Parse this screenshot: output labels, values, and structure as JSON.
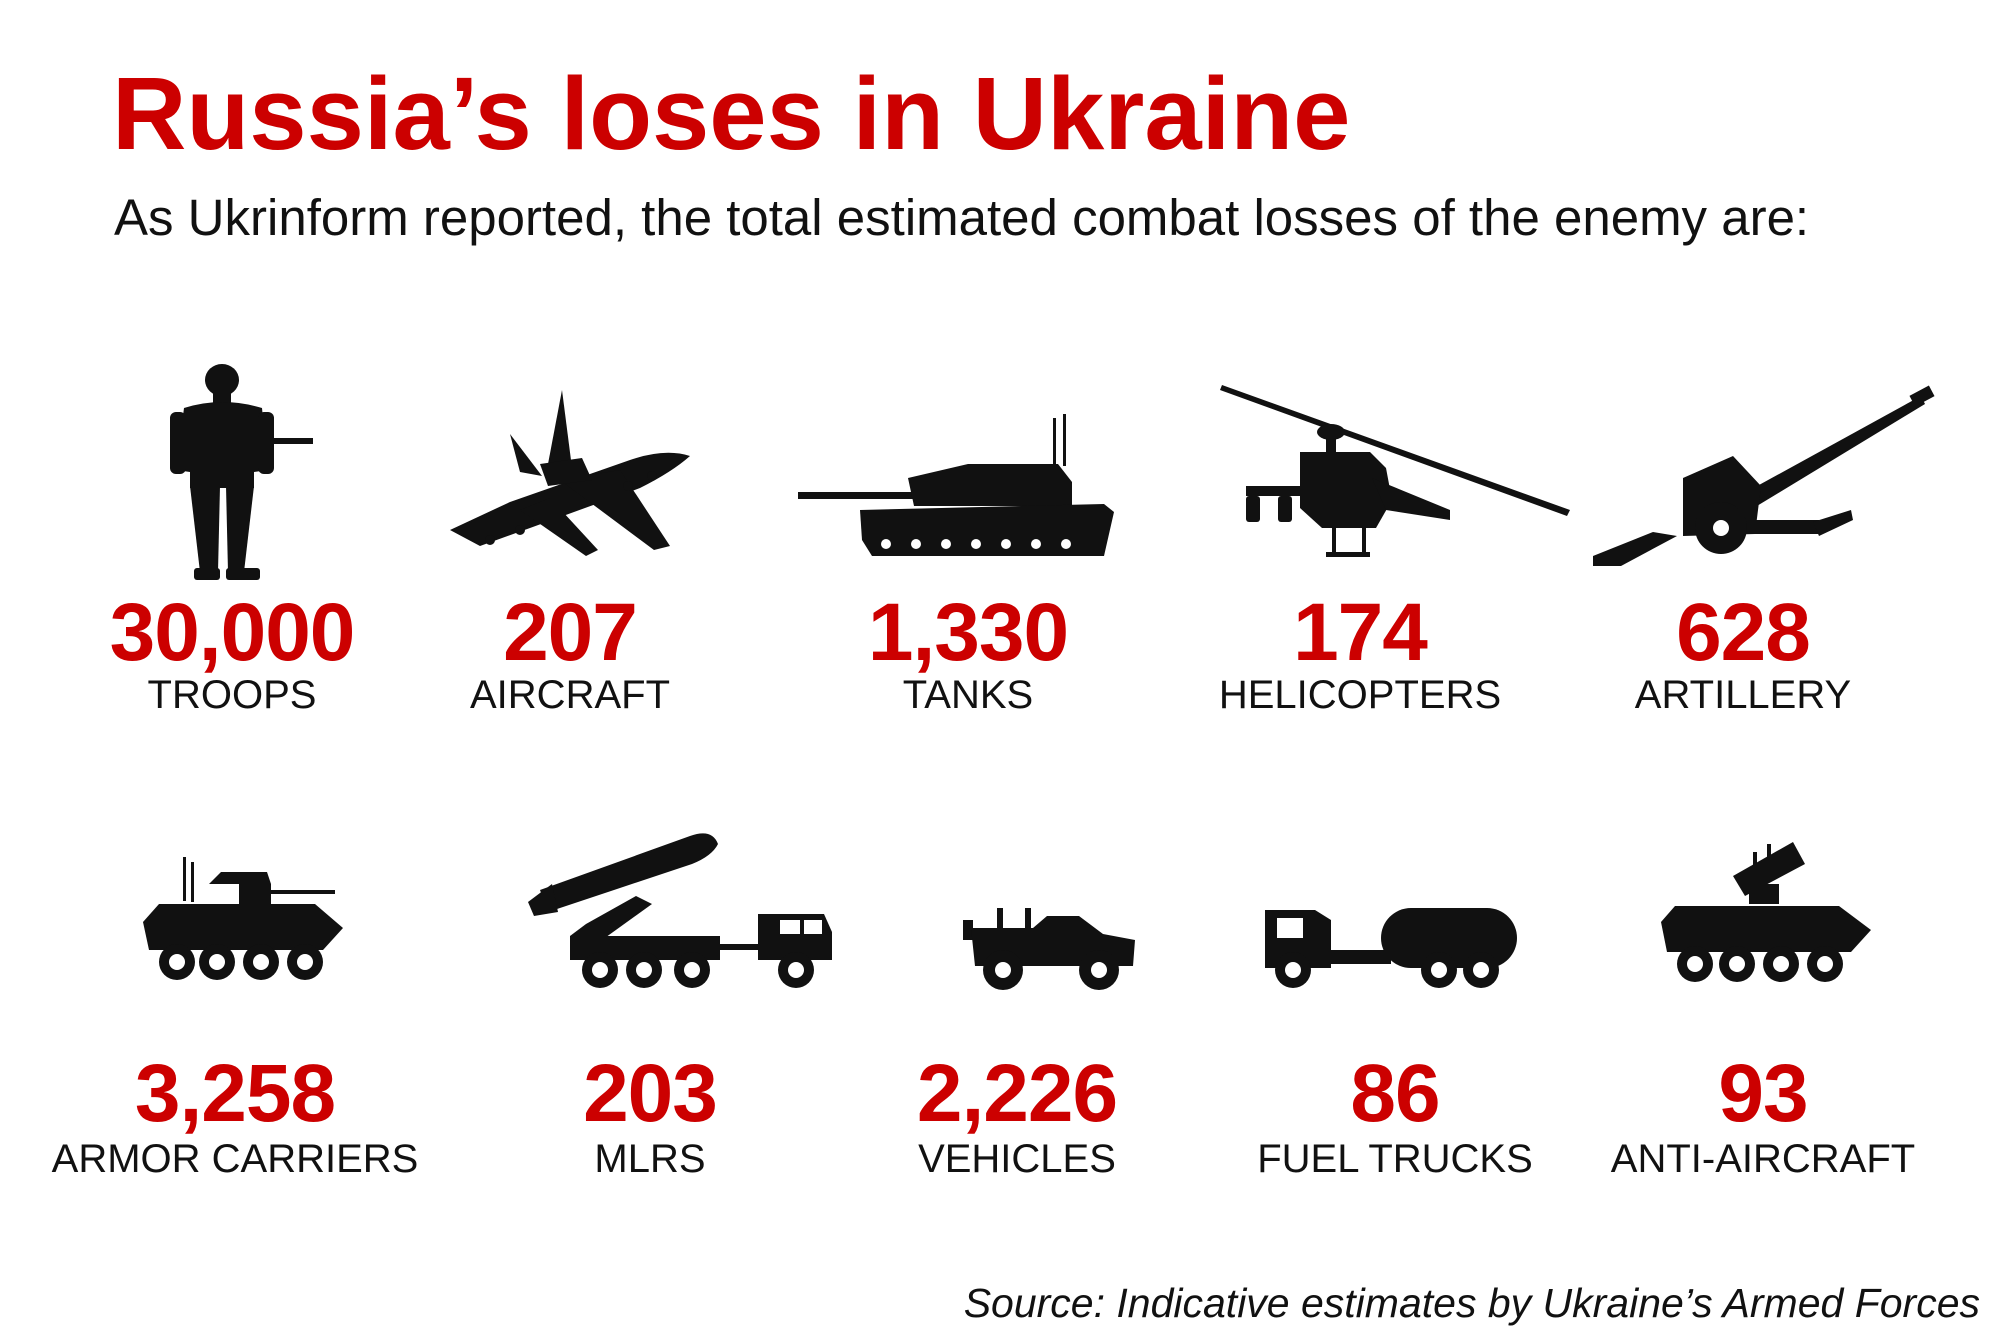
{
  "title": "Russia’s loses in Ukraine",
  "subtitle": "As Ukrinform reported, the total estimated combat losses of the enemy are:",
  "accent_color": "#cc0000",
  "icon_color": "#111111",
  "items": [
    {
      "value": "30,000",
      "label": "TROOPS",
      "icon": "soldier-icon"
    },
    {
      "value": "207",
      "label": "AIRCRAFT",
      "icon": "fighter-jet-icon"
    },
    {
      "value": "1,330",
      "label": "TANKS",
      "icon": "tank-icon"
    },
    {
      "value": "174",
      "label": "HELICOPTERS",
      "icon": "helicopter-icon"
    },
    {
      "value": "628",
      "label": "ARTILLERY",
      "icon": "artillery-icon"
    },
    {
      "value": "3,258",
      "label": "ARMOR CARRIERS",
      "icon": "armored-carrier-icon"
    },
    {
      "value": "203",
      "label": "MLRS",
      "icon": "rocket-launcher-icon"
    },
    {
      "value": "2,226",
      "label": "VEHICLES",
      "icon": "jeep-icon"
    },
    {
      "value": "86",
      "label": "FUEL TRUCKS",
      "icon": "fuel-truck-icon"
    },
    {
      "value": "93",
      "label": "ANTI-AIRCRAFT",
      "icon": "anti-aircraft-icon"
    }
  ],
  "source": "Source: Indicative estimates by Ukraine’s Armed Forces"
}
